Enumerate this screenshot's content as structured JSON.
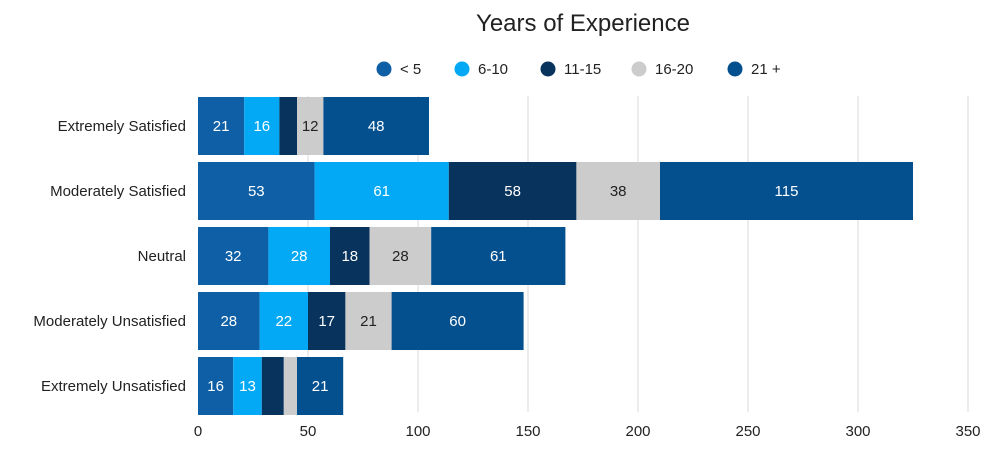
{
  "chart_data": {
    "type": "bar",
    "orientation": "horizontal",
    "stacked": true,
    "title": "Years of Experience",
    "categories": [
      "Extremely Satisfied",
      "Moderately Satisfied",
      "Neutral",
      "Moderately Unsatisfied",
      "Extremely Unsatisfied"
    ],
    "series": [
      {
        "name": "< 5",
        "color": "#0f5fa6",
        "label_color": "#ffffff",
        "values": [
          21,
          53,
          32,
          28,
          16
        ],
        "labels": [
          "21",
          "53",
          "32",
          "28",
          "16"
        ]
      },
      {
        "name": "6-10",
        "color": "#03a9f4",
        "label_color": "#ffffff",
        "values": [
          16,
          61,
          28,
          22,
          13
        ],
        "labels": [
          "16",
          "61",
          "28",
          "22",
          "13"
        ]
      },
      {
        "name": "11-15",
        "color": "#08335c",
        "label_color": "#ffffff",
        "values": [
          8,
          58,
          18,
          17,
          10
        ],
        "labels": [
          "",
          "58",
          "18",
          "17",
          ""
        ]
      },
      {
        "name": "16-20",
        "color": "#cccccc",
        "label_color": "#222222",
        "values": [
          12,
          38,
          28,
          21,
          6
        ],
        "labels": [
          "12",
          "38",
          "28",
          "21",
          ""
        ]
      },
      {
        "name": "21 +",
        "color": "#04508f",
        "label_color": "#ffffff",
        "values": [
          48,
          115,
          61,
          60,
          21
        ],
        "labels": [
          "48",
          "115",
          "61",
          "60",
          "21"
        ]
      }
    ],
    "xlim": [
      0,
      350
    ],
    "xticks": [
      "0",
      "50",
      "100",
      "150",
      "200",
      "250",
      "300",
      "350"
    ],
    "grid": true,
    "legend_position": "top"
  }
}
